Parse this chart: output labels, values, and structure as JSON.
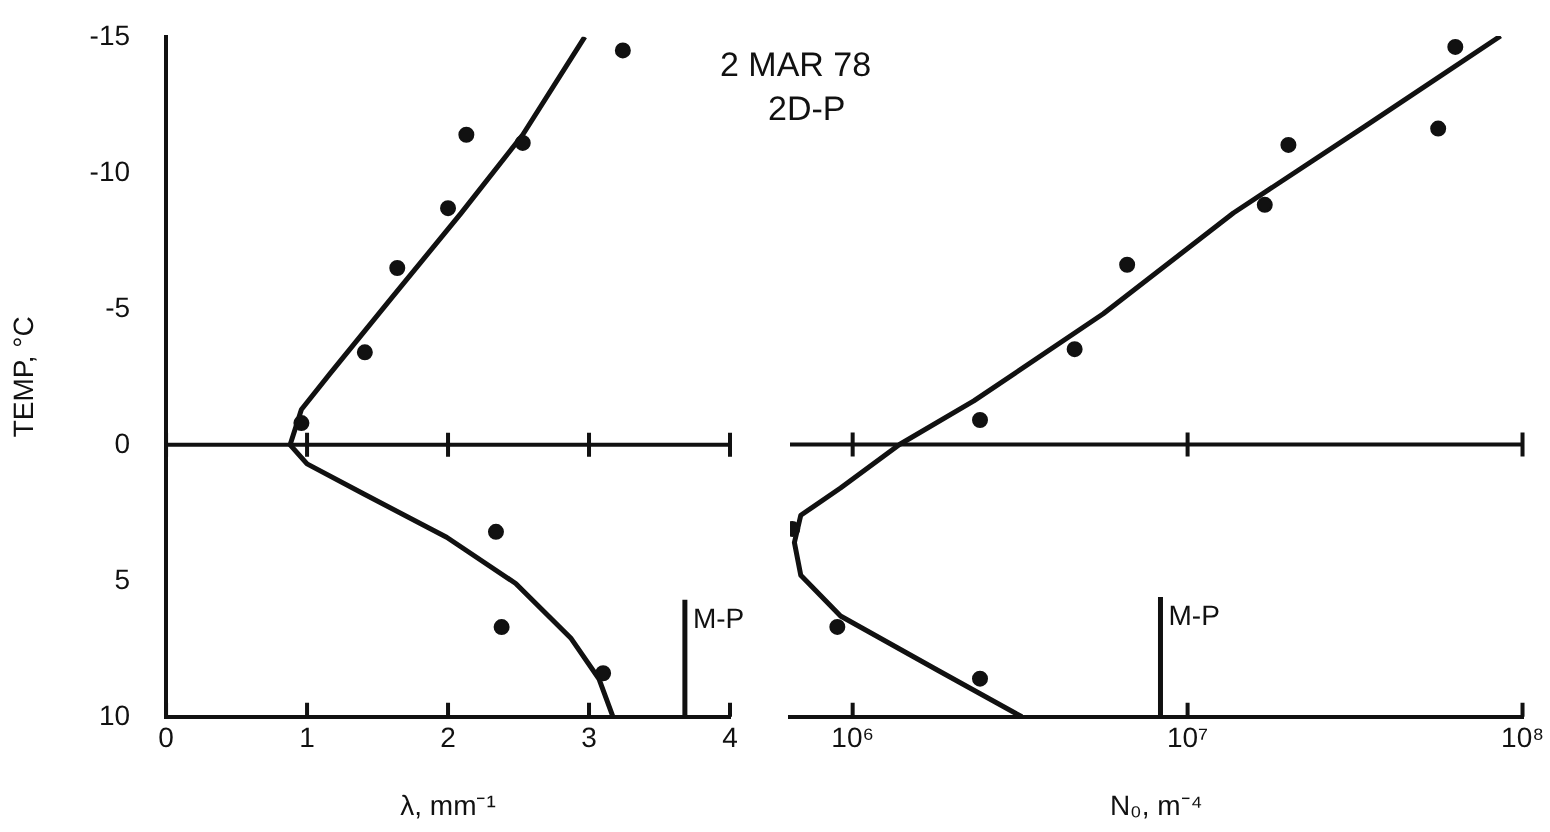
{
  "chart_data": [
    {
      "type": "scatter",
      "xlabel": "λ, mm⁻¹",
      "ylabel": "TEMP, °C",
      "xlim": [
        0,
        4
      ],
      "xticks": [
        0,
        1,
        2,
        3,
        4
      ],
      "ylim": [
        10,
        -15
      ],
      "yticks": [
        10,
        5,
        0,
        -5,
        -10,
        -15
      ],
      "grid": false,
      "legend": false,
      "marker": "circle",
      "ref_lines": [
        {
          "axis": "y",
          "value": 0
        }
      ],
      "series": [
        {
          "type": "scatter",
          "color": "#111111",
          "x": [
            3.24,
            2.13,
            2.53,
            2.0,
            1.64,
            1.41,
            0.96,
            2.34,
            2.38,
            3.1
          ],
          "values": [
            -14.5,
            -11.4,
            -11.1,
            -8.7,
            -6.5,
            -3.4,
            -0.8,
            3.2,
            6.7,
            8.4
          ]
        },
        {
          "type": "line",
          "color": "#111111",
          "marker": "none",
          "x": [
            2.97,
            2.53,
            2.09,
            1.6,
            1.16,
            0.96,
            0.88,
            1.0,
            1.4,
            1.99,
            2.48,
            2.87,
            3.07,
            3.17
          ],
          "values": [
            -15,
            -11.4,
            -8.5,
            -5.4,
            -2.6,
            -1.3,
            0,
            0.7,
            1.8,
            3.4,
            5.1,
            7.1,
            8.6,
            10
          ]
        },
        {
          "type": "line",
          "name": "M-P",
          "color": "#111111",
          "marker": "none",
          "x": [
            3.68,
            3.68
          ],
          "values": [
            10,
            5.7
          ]
        }
      ]
    },
    {
      "type": "scatter",
      "xlabel": "N₀, m⁻⁴",
      "log": "x",
      "xlim": [
        650000,
        100000000
      ],
      "xticks": [
        {
          "value": 1000000,
          "label": "10⁶"
        },
        {
          "value": 10000000,
          "label": "10⁷"
        },
        {
          "value": 100000000,
          "label": "10⁸"
        }
      ],
      "ylim": [
        10,
        -15
      ],
      "yticks": [
        10,
        5,
        0,
        -5,
        -10,
        -15
      ],
      "tick_labels": "x",
      "grid": false,
      "legend": false,
      "marker": "circle",
      "annotations": [
        "2 MAR 78",
        "2D-P"
      ],
      "ref_lines": [
        {
          "axis": "y",
          "value": 0
        }
      ],
      "series": [
        {
          "type": "scatter",
          "color": "#111111",
          "x": [
            63000000,
            56000000,
            20000000,
            17000000,
            6600000,
            4600000,
            2400000,
            660000,
            900000,
            2400000
          ],
          "values": [
            -14.6,
            -11.6,
            -11.0,
            -8.8,
            -6.6,
            -3.5,
            -0.9,
            3.1,
            6.7,
            8.6
          ]
        },
        {
          "type": "line",
          "color": "#111111",
          "marker": "none",
          "x": [
            86000000,
            34000000,
            13700000,
            5600000,
            2300000,
            1380000,
            920000,
            700000,
            670000,
            700000,
            920000,
            1800000,
            3200000
          ],
          "values": [
            -15,
            -11.7,
            -8.5,
            -4.8,
            -1.6,
            0,
            1.6,
            2.6,
            3.6,
            4.8,
            6.3,
            8.3,
            10
          ]
        },
        {
          "type": "line",
          "name": "M-P",
          "color": "#111111",
          "marker": "none",
          "x": [
            8300000,
            8300000
          ],
          "values": [
            10,
            5.6
          ]
        }
      ]
    }
  ]
}
